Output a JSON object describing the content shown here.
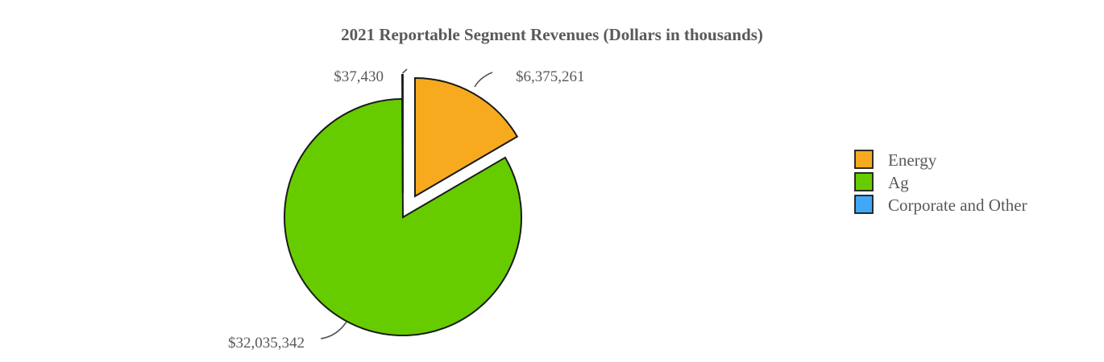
{
  "chart_data": {
    "type": "pie",
    "title": "2021 Reportable Segment Revenues (Dollars in thousands)",
    "categories": [
      "Energy",
      "Ag",
      "Corporate and Other"
    ],
    "values": [
      6375261,
      32035342,
      37430
    ],
    "labels": [
      "$6,375,261",
      "$32,035,342",
      "$37,430"
    ],
    "colors": [
      "#F7AA1E",
      "#66CC00",
      "#3FA9F5"
    ],
    "exploded": [
      true,
      false,
      true
    ],
    "legend_position": "right",
    "start_angle": "top, clockwise"
  }
}
